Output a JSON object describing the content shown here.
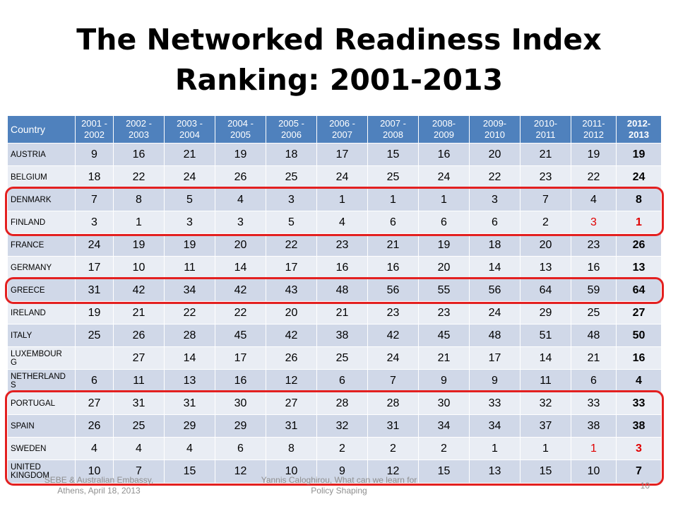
{
  "slide": {
    "title_line1": "The Networked Readiness Index",
    "title_line2": "Ranking: 2001-2013",
    "footer_left_line1": "SEBE & Australian Embassy,",
    "footer_left_line2": "Athens, April 18, 2013",
    "footer_center_line1": "Yannis Caloghirou, What can we learn for",
    "footer_center_line2": "Policy Shaping",
    "page_number": "10",
    "colors": {
      "header_bg": "#4f81bd",
      "row_odd": "#d0d8e8",
      "row_even": "#e9edf4",
      "highlight": "#e32020",
      "red_value": "#e00000"
    }
  },
  "table": {
    "country_header": "Country",
    "columns": [
      [
        "2001 -",
        "2002"
      ],
      [
        "2002 -",
        "2003"
      ],
      [
        "2003 -",
        "2004"
      ],
      [
        "2004 -",
        "2005"
      ],
      [
        "2005 -",
        "2006"
      ],
      [
        "2006 -",
        "2007"
      ],
      [
        "2007 -",
        "2008"
      ],
      [
        "2008-",
        "2009"
      ],
      [
        "2009-",
        "2010"
      ],
      [
        "2010-",
        "2011"
      ],
      [
        "2011-",
        "2012"
      ],
      [
        "2012-",
        "2013"
      ]
    ],
    "rows": [
      {
        "country": [
          "AUSTRIA"
        ],
        "values": [
          "9",
          "16",
          "21",
          "19",
          "18",
          "17",
          "15",
          "16",
          "20",
          "21",
          "19",
          "19"
        ]
      },
      {
        "country": [
          "BELGIUM"
        ],
        "values": [
          "18",
          "22",
          "24",
          "26",
          "25",
          "24",
          "25",
          "24",
          "22",
          "23",
          "22",
          "24"
        ]
      },
      {
        "country": [
          "DENMARK"
        ],
        "values": [
          "7",
          "8",
          "5",
          "4",
          "3",
          "1",
          "1",
          "1",
          "3",
          "7",
          "4",
          "8"
        ]
      },
      {
        "country": [
          "FINLAND"
        ],
        "values": [
          "3",
          "1",
          "3",
          "3",
          "5",
          "4",
          "6",
          "6",
          "6",
          "2",
          "3",
          "1"
        ],
        "red_cols": [
          10,
          11
        ]
      },
      {
        "country": [
          "FRANCE"
        ],
        "values": [
          "24",
          "19",
          "19",
          "20",
          "22",
          "23",
          "21",
          "19",
          "18",
          "20",
          "23",
          "26"
        ]
      },
      {
        "country": [
          "GERMANY"
        ],
        "values": [
          "17",
          "10",
          "11",
          "14",
          "17",
          "16",
          "16",
          "20",
          "14",
          "13",
          "16",
          "13"
        ]
      },
      {
        "country": [
          "GREECE"
        ],
        "values": [
          "31",
          "42",
          "34",
          "42",
          "43",
          "48",
          "56",
          "55",
          "56",
          "64",
          "59",
          "64"
        ]
      },
      {
        "country": [
          "IRELAND"
        ],
        "values": [
          "19",
          "21",
          "22",
          "22",
          "20",
          "21",
          "23",
          "23",
          "24",
          "29",
          "25",
          "27"
        ]
      },
      {
        "country": [
          "ITALY"
        ],
        "values": [
          "25",
          "26",
          "28",
          "45",
          "42",
          "38",
          "42",
          "45",
          "48",
          "51",
          "48",
          "50"
        ]
      },
      {
        "country": [
          "LUXEMBOUR",
          "G"
        ],
        "values": [
          "",
          "27",
          "14",
          "17",
          "26",
          "25",
          "24",
          "21",
          "17",
          "14",
          "21",
          "16"
        ]
      },
      {
        "country": [
          "NETHERLAND",
          "S"
        ],
        "values": [
          "6",
          "11",
          "13",
          "16",
          "12",
          "6",
          "7",
          "9",
          "9",
          "11",
          "6",
          "4"
        ]
      },
      {
        "country": [
          "PORTUGAL"
        ],
        "values": [
          "27",
          "31",
          "31",
          "30",
          "27",
          "28",
          "28",
          "30",
          "33",
          "32",
          "33",
          "33"
        ]
      },
      {
        "country": [
          "SPAIN"
        ],
        "values": [
          "26",
          "25",
          "29",
          "29",
          "31",
          "32",
          "31",
          "34",
          "34",
          "37",
          "38",
          "38"
        ]
      },
      {
        "country": [
          "SWEDEN"
        ],
        "values": [
          "4",
          "4",
          "4",
          "6",
          "8",
          "2",
          "2",
          "2",
          "1",
          "1",
          "1",
          "3"
        ],
        "red_cols": [
          10,
          11
        ]
      },
      {
        "country": [
          "UNITED",
          "KINGDOM"
        ],
        "values": [
          "10",
          "7",
          "15",
          "12",
          "10",
          "9",
          "12",
          "15",
          "13",
          "15",
          "10",
          "7"
        ]
      }
    ]
  },
  "highlights": [
    {
      "label": "Denmark-Finland",
      "rows": [
        2,
        3
      ]
    },
    {
      "label": "Greece",
      "rows": [
        6,
        6
      ]
    },
    {
      "label": "Portugal-Sweden-UK",
      "rows": [
        11,
        14
      ]
    }
  ]
}
